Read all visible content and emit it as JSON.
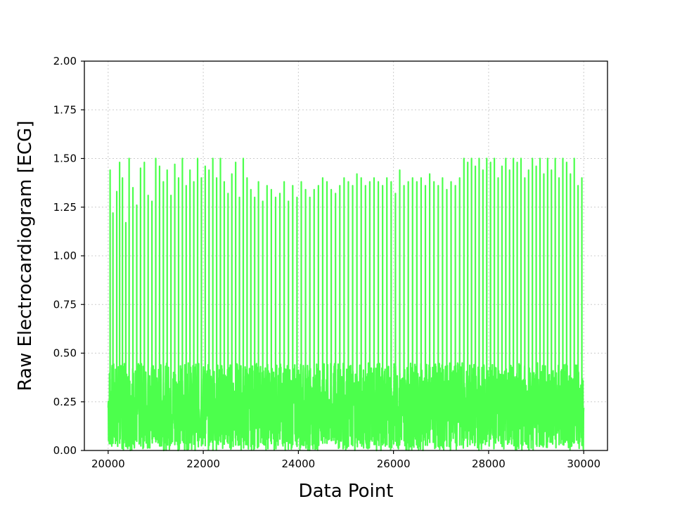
{
  "chart_data": {
    "type": "line",
    "title": "",
    "xlabel": "Data Point",
    "ylabel": "Raw Electrocardiogram [ECG]",
    "xlim": [
      19500,
      30500
    ],
    "ylim": [
      0,
      2
    ],
    "x_ticks": [
      20000,
      22000,
      24000,
      26000,
      28000,
      30000
    ],
    "y_ticks": [
      "0.00",
      "0.25",
      "0.50",
      "0.75",
      "1.00",
      "1.25",
      "1.50",
      "1.75",
      "2.00"
    ],
    "grid": true,
    "series_color": "#4cff4c",
    "series": [
      {
        "x_start": 20000,
        "x_end": 30000,
        "baseline_range": [
          0.0,
          0.45
        ],
        "peak_x": [
          20040,
          20100,
          20180,
          20240,
          20300,
          20370,
          20440,
          20520,
          20600,
          20680,
          20760,
          20840,
          20920,
          21000,
          21080,
          21160,
          21240,
          21320,
          21400,
          21480,
          21560,
          21640,
          21720,
          21800,
          21880,
          21960,
          22040,
          22120,
          22200,
          22280,
          22360,
          22440,
          22520,
          22600,
          22680,
          22760,
          22840,
          22920,
          23000,
          23080,
          23160,
          23250,
          23340,
          23430,
          23520,
          23610,
          23700,
          23790,
          23880,
          23970,
          24060,
          24150,
          24240,
          24330,
          24420,
          24510,
          24600,
          24690,
          24780,
          24870,
          24960,
          25050,
          25140,
          25230,
          25320,
          25410,
          25500,
          25590,
          25680,
          25770,
          25860,
          25950,
          26040,
          26130,
          26220,
          26310,
          26400,
          26490,
          26580,
          26670,
          26760,
          26850,
          26940,
          27030,
          27120,
          27210,
          27300,
          27390,
          27480,
          27560,
          27640,
          27720,
          27800,
          27880,
          27960,
          28040,
          28120,
          28200,
          28280,
          28360,
          28440,
          28520,
          28600,
          28680,
          28760,
          28840,
          28920,
          29000,
          29080,
          29160,
          29240,
          29320,
          29400,
          29480,
          29560,
          29640,
          29720,
          29800,
          29880,
          29960
        ],
        "peak_y": [
          1.44,
          1.22,
          1.33,
          1.48,
          1.4,
          1.17,
          1.5,
          1.35,
          1.26,
          1.45,
          1.48,
          1.31,
          1.28,
          1.5,
          1.46,
          1.38,
          1.44,
          1.31,
          1.47,
          1.4,
          1.5,
          1.36,
          1.44,
          1.38,
          1.5,
          1.4,
          1.46,
          1.44,
          1.5,
          1.4,
          1.5,
          1.38,
          1.32,
          1.42,
          1.48,
          1.3,
          1.5,
          1.4,
          1.34,
          1.3,
          1.38,
          1.28,
          1.36,
          1.34,
          1.3,
          1.32,
          1.38,
          1.28,
          1.36,
          1.3,
          1.38,
          1.34,
          1.3,
          1.34,
          1.36,
          1.4,
          1.38,
          1.34,
          1.32,
          1.36,
          1.4,
          1.38,
          1.36,
          1.42,
          1.4,
          1.36,
          1.38,
          1.4,
          1.38,
          1.36,
          1.4,
          1.38,
          1.32,
          1.44,
          1.36,
          1.38,
          1.4,
          1.38,
          1.4,
          1.36,
          1.42,
          1.38,
          1.36,
          1.4,
          1.34,
          1.38,
          1.36,
          1.4,
          1.5,
          1.48,
          1.5,
          1.46,
          1.5,
          1.44,
          1.5,
          1.48,
          1.5,
          1.4,
          1.46,
          1.5,
          1.44,
          1.5,
          1.48,
          1.5,
          1.4,
          1.44,
          1.5,
          1.46,
          1.5,
          1.42,
          1.5,
          1.44,
          1.5,
          1.4,
          1.5,
          1.48,
          1.42,
          1.5,
          1.36,
          1.4
        ]
      }
    ]
  }
}
